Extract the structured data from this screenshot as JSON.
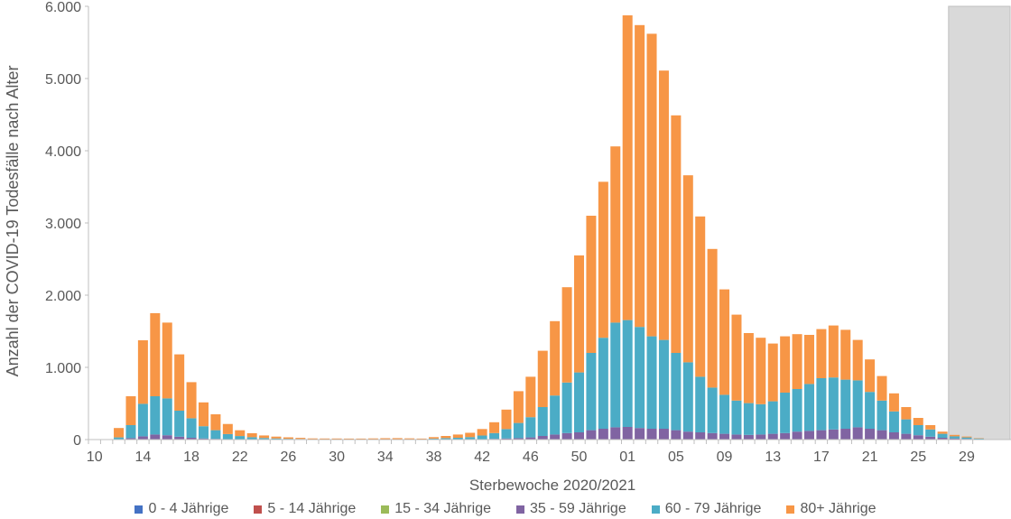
{
  "chart_data": {
    "type": "bar",
    "stacked": true,
    "title": "",
    "xlabel": "Sterbewoche 2020/2021",
    "ylabel": "Anzahl der COVID-19 Todesfälle nach Alter",
    "ylim": [
      0,
      6000
    ],
    "yticks": [
      "0",
      "1.000",
      "2.000",
      "3.000",
      "4.000",
      "5.000",
      "6.000"
    ],
    "ytick_values": [
      0,
      1000,
      2000,
      3000,
      4000,
      5000,
      6000
    ],
    "grid": false,
    "legend_position": "bottom",
    "shaded_region": {
      "from_week": "28",
      "to_week": "30"
    },
    "xtick_labels": [
      "10",
      "14",
      "18",
      "22",
      "26",
      "30",
      "34",
      "38",
      "42",
      "46",
      "50",
      "01",
      "05",
      "09",
      "13",
      "17",
      "21",
      "25",
      "29"
    ],
    "categories": [
      "10",
      "11",
      "12",
      "13",
      "14",
      "15",
      "16",
      "17",
      "18",
      "19",
      "20",
      "21",
      "22",
      "23",
      "24",
      "25",
      "26",
      "27",
      "28",
      "29",
      "30",
      "31",
      "32",
      "33",
      "34",
      "35",
      "36",
      "37",
      "38",
      "39",
      "40",
      "41",
      "42",
      "43",
      "44",
      "45",
      "46",
      "47",
      "48",
      "49",
      "50",
      "51",
      "52",
      "53",
      "01",
      "02",
      "03",
      "04",
      "05",
      "06",
      "07",
      "08",
      "09",
      "10",
      "11",
      "12",
      "13",
      "14",
      "15",
      "16",
      "17",
      "18",
      "19",
      "20",
      "21",
      "22",
      "23",
      "24",
      "25",
      "26",
      "27",
      "28",
      "29",
      "30"
    ],
    "series": [
      {
        "name": "0 - 4 Jährige",
        "color": "#4472C4",
        "values": [
          0,
          0,
          0,
          0,
          0,
          0,
          0,
          0,
          0,
          0,
          0,
          0,
          0,
          0,
          0,
          0,
          0,
          0,
          0,
          0,
          0,
          0,
          0,
          0,
          0,
          0,
          0,
          0,
          0,
          0,
          0,
          0,
          0,
          0,
          0,
          0,
          0,
          0,
          0,
          0,
          0,
          0,
          0,
          0,
          0,
          0,
          0,
          0,
          0,
          0,
          0,
          0,
          0,
          0,
          0,
          0,
          0,
          0,
          0,
          0,
          0,
          0,
          0,
          0,
          0,
          0,
          0,
          0,
          0,
          0,
          0,
          0,
          0,
          0
        ]
      },
      {
        "name": "5 - 14 Jährige",
        "color": "#C0504D",
        "values": [
          0,
          0,
          0,
          0,
          0,
          0,
          0,
          0,
          0,
          0,
          0,
          0,
          0,
          0,
          0,
          0,
          0,
          0,
          0,
          0,
          0,
          0,
          0,
          0,
          0,
          0,
          0,
          0,
          0,
          0,
          0,
          0,
          0,
          0,
          0,
          0,
          0,
          0,
          0,
          0,
          0,
          0,
          0,
          0,
          0,
          0,
          0,
          0,
          0,
          0,
          0,
          0,
          0,
          0,
          0,
          0,
          0,
          0,
          0,
          0,
          0,
          0,
          0,
          0,
          0,
          0,
          0,
          0,
          0,
          0,
          0,
          0,
          0,
          0
        ]
      },
      {
        "name": "15 - 34 Jährige",
        "color": "#9BBB59",
        "values": [
          0,
          0,
          0,
          0,
          0,
          0,
          0,
          0,
          0,
          0,
          0,
          0,
          0,
          0,
          0,
          0,
          0,
          0,
          0,
          0,
          0,
          0,
          0,
          0,
          0,
          0,
          0,
          0,
          0,
          0,
          0,
          0,
          0,
          0,
          0,
          0,
          0,
          0,
          0,
          0,
          0,
          0,
          0,
          0,
          0,
          0,
          0,
          0,
          0,
          0,
          0,
          0,
          0,
          0,
          0,
          0,
          0,
          0,
          0,
          0,
          0,
          0,
          0,
          0,
          0,
          0,
          0,
          0,
          0,
          0,
          0,
          0,
          0,
          0
        ]
      },
      {
        "name": "35 - 59 Jährige",
        "color": "#8064A2",
        "values": [
          0,
          0,
          5,
          20,
          45,
          70,
          60,
          40,
          25,
          15,
          10,
          6,
          4,
          3,
          2,
          1,
          1,
          1,
          1,
          1,
          1,
          1,
          1,
          1,
          1,
          1,
          1,
          1,
          2,
          2,
          3,
          4,
          6,
          10,
          15,
          20,
          30,
          50,
          70,
          90,
          100,
          130,
          150,
          170,
          175,
          160,
          150,
          150,
          130,
          110,
          100,
          90,
          80,
          70,
          65,
          70,
          80,
          90,
          110,
          120,
          130,
          140,
          150,
          170,
          150,
          130,
          100,
          80,
          60,
          40,
          25,
          15,
          10,
          5
        ]
      },
      {
        "name": "60 - 79 Jährige",
        "color": "#4BACC6",
        "values": [
          0,
          0,
          25,
          180,
          450,
          530,
          510,
          360,
          270,
          170,
          120,
          70,
          45,
          30,
          20,
          15,
          10,
          8,
          5,
          4,
          4,
          3,
          3,
          3,
          4,
          4,
          4,
          3,
          12,
          18,
          22,
          30,
          50,
          80,
          130,
          210,
          280,
          400,
          540,
          700,
          830,
          1070,
          1260,
          1450,
          1480,
          1400,
          1280,
          1230,
          1070,
          960,
          770,
          630,
          540,
          470,
          440,
          420,
          450,
          560,
          590,
          650,
          720,
          720,
          680,
          650,
          510,
          410,
          290,
          200,
          140,
          100,
          55,
          30,
          20,
          10
        ]
      },
      {
        "name": "80+ Jährige",
        "color": "#F79646",
        "values": [
          0,
          0,
          130,
          400,
          880,
          1150,
          1050,
          780,
          500,
          330,
          220,
          140,
          80,
          55,
          35,
          25,
          20,
          15,
          10,
          10,
          10,
          10,
          10,
          12,
          14,
          15,
          12,
          10,
          20,
          30,
          45,
          60,
          90,
          150,
          270,
          440,
          560,
          780,
          1030,
          1320,
          1620,
          1900,
          2160,
          2440,
          4220,
          4180,
          4190,
          3730,
          3290,
          2590,
          2220,
          1920,
          1460,
          1190,
          970,
          920,
          800,
          780,
          760,
          680,
          680,
          720,
          690,
          560,
          450,
          340,
          250,
          170,
          100,
          60,
          30,
          20,
          12,
          5
        ]
      }
    ]
  },
  "legend": {
    "items": [
      {
        "label": "0 - 4 Jährige",
        "color": "#4472C4"
      },
      {
        "label": "5 - 14 Jährige",
        "color": "#C0504D"
      },
      {
        "label": "15 - 34 Jährige",
        "color": "#9BBB59"
      },
      {
        "label": "35 - 59 Jährige",
        "color": "#8064A2"
      },
      {
        "label": "60 - 79 Jährige",
        "color": "#4BACC6"
      },
      {
        "label": "80+ Jährige",
        "color": "#F79646"
      }
    ]
  }
}
